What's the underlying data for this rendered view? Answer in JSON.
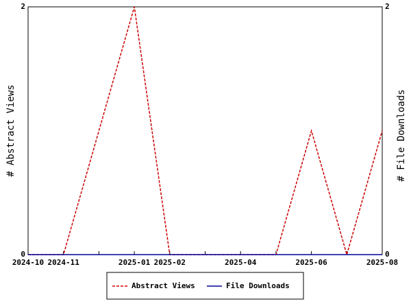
{
  "chart_data": {
    "type": "line",
    "categories": [
      "2024-10",
      "2024-11",
      null,
      "2025-01",
      "2025-02",
      null,
      "2025-04",
      null,
      "2025-06",
      null,
      "2025-08"
    ],
    "series": [
      {
        "name": "Abstract Views",
        "color": "#cc0000",
        "dashed": true,
        "values": [
          0,
          0,
          1,
          2,
          0,
          0,
          0,
          0,
          1,
          0,
          1
        ]
      },
      {
        "name": "File Downloads",
        "color": "#000099",
        "dashed": false,
        "axis": "y2",
        "values": [
          0,
          0,
          0,
          0,
          0,
          0,
          0,
          0,
          0,
          0,
          0
        ]
      }
    ],
    "ylabel": "# Abstract Views",
    "y2label": "# File Downloads",
    "ylim": [
      0,
      2
    ],
    "yticks": [
      0,
      2
    ],
    "y2lim": [
      0,
      2
    ],
    "y2ticks": [
      0,
      2
    ],
    "grid": false,
    "legend": "bottom"
  }
}
